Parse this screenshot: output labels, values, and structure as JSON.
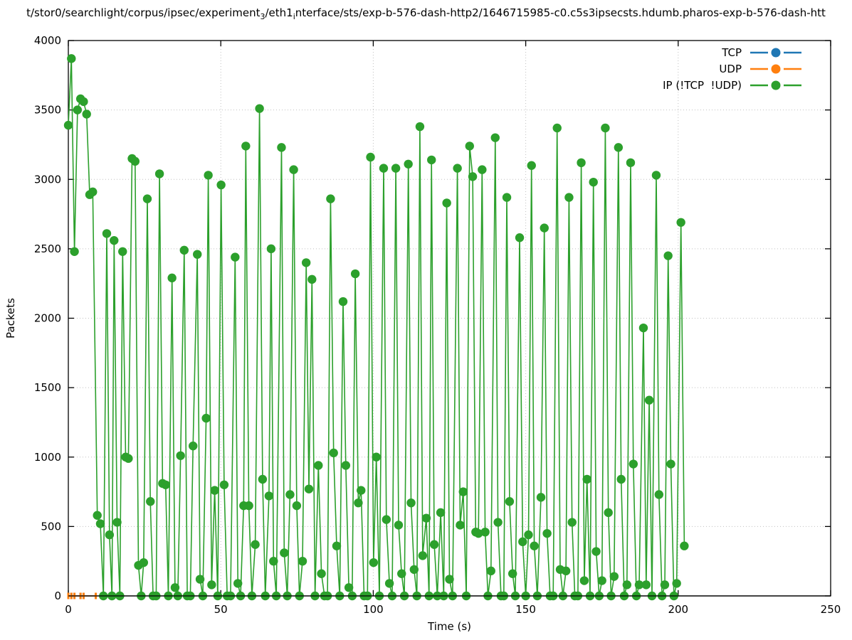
{
  "title": {
    "segments": [
      {
        "text": "t/stor0/searchlight/corpus/ipsec/experiment"
      },
      {
        "text": "3",
        "sub": true
      },
      {
        "text": "/eth1"
      },
      {
        "text": "i",
        "sub": true
      },
      {
        "text": "nterface/sts/exp-b-576-dash-http2/1646715985-c0.c5s3ipsecsts.hdumb.pharos-exp-b-576-dash-htt"
      }
    ]
  },
  "chart_data": {
    "type": "line",
    "style": "linespoints",
    "xlabel": "Time (s)",
    "ylabel": "Packets",
    "xlim": [
      0,
      250
    ],
    "ylim": [
      0,
      4000
    ],
    "xticks": [
      0,
      50,
      100,
      150,
      200,
      250
    ],
    "yticks": [
      0,
      500,
      1000,
      1500,
      2000,
      2500,
      3000,
      3500,
      4000
    ],
    "grid": true,
    "legend_position": "top-right",
    "series": [
      {
        "name": "TCP",
        "color": "#1f77b4",
        "marker": "dash",
        "points": [
          [
            0,
            0
          ],
          [
            1,
            0
          ],
          [
            2,
            0
          ],
          [
            4,
            0
          ],
          [
            5,
            0
          ],
          [
            9,
            0
          ]
        ]
      },
      {
        "name": "UDP",
        "color": "#ff7f0e",
        "marker": "dash",
        "points": [
          [
            0,
            0
          ],
          [
            1,
            0
          ],
          [
            2,
            0
          ],
          [
            4,
            0
          ],
          [
            5,
            0
          ],
          [
            9,
            0
          ]
        ]
      },
      {
        "name": "IP (!TCP  !UDP)",
        "color": "#2ca02c",
        "marker": "circle",
        "points": [
          [
            0,
            3390
          ],
          [
            1,
            3870
          ],
          [
            2,
            2480
          ],
          [
            3,
            3500
          ],
          [
            4,
            3580
          ],
          [
            5,
            3560
          ],
          [
            6,
            3470
          ],
          [
            7,
            2890
          ],
          [
            8,
            2910
          ],
          [
            9.5,
            580
          ],
          [
            10.5,
            520
          ],
          [
            11.5,
            0
          ],
          [
            12.6,
            2610
          ],
          [
            13.5,
            440
          ],
          [
            14.3,
            0
          ],
          [
            15,
            2560
          ],
          [
            16,
            530
          ],
          [
            16.9,
            0
          ],
          [
            17.8,
            2480
          ],
          [
            18.8,
            1000
          ],
          [
            19.7,
            990
          ],
          [
            20.9,
            3150
          ],
          [
            21.9,
            3130
          ],
          [
            23,
            220
          ],
          [
            23.9,
            0
          ],
          [
            24.7,
            240
          ],
          [
            25.9,
            2860
          ],
          [
            26.9,
            680
          ],
          [
            27.8,
            0
          ],
          [
            28.8,
            0
          ],
          [
            29.9,
            3040
          ],
          [
            30.9,
            810
          ],
          [
            31.9,
            800
          ],
          [
            32.8,
            0
          ],
          [
            34,
            2290
          ],
          [
            35,
            60
          ],
          [
            35.9,
            0
          ],
          [
            36.8,
            1010
          ],
          [
            38,
            2490
          ],
          [
            39,
            0
          ],
          [
            40,
            0
          ],
          [
            40.9,
            1080
          ],
          [
            42.3,
            2460
          ],
          [
            43.2,
            120
          ],
          [
            44.1,
            0
          ],
          [
            45.2,
            1280
          ],
          [
            45.9,
            3030
          ],
          [
            47,
            80
          ],
          [
            48,
            760
          ],
          [
            49,
            0
          ],
          [
            50.1,
            2960
          ],
          [
            51.1,
            800
          ],
          [
            52.1,
            0
          ],
          [
            53.2,
            0
          ],
          [
            54.7,
            2440
          ],
          [
            55.6,
            90
          ],
          [
            56.5,
            0
          ],
          [
            57.5,
            650
          ],
          [
            58.2,
            3240
          ],
          [
            59.2,
            650
          ],
          [
            60.2,
            0
          ],
          [
            61.3,
            370
          ],
          [
            62.7,
            3510
          ],
          [
            63.7,
            840
          ],
          [
            64.6,
            0
          ],
          [
            65.8,
            720
          ],
          [
            66.5,
            2500
          ],
          [
            67.3,
            250
          ],
          [
            68.2,
            0
          ],
          [
            69.9,
            3230
          ],
          [
            70.8,
            310
          ],
          [
            71.8,
            0
          ],
          [
            72.7,
            730
          ],
          [
            73.9,
            3070
          ],
          [
            74.9,
            650
          ],
          [
            75.8,
            0
          ],
          [
            76.8,
            250
          ],
          [
            78,
            2400
          ],
          [
            78.9,
            770
          ],
          [
            79.9,
            2280
          ],
          [
            80.9,
            0
          ],
          [
            82,
            940
          ],
          [
            83,
            160
          ],
          [
            84,
            0
          ],
          [
            85,
            0
          ],
          [
            86,
            2860
          ],
          [
            87,
            1030
          ],
          [
            88,
            360
          ],
          [
            89,
            0
          ],
          [
            90.1,
            2120
          ],
          [
            91,
            940
          ],
          [
            92,
            60
          ],
          [
            93.1,
            0
          ],
          [
            94.1,
            2320
          ],
          [
            95.1,
            670
          ],
          [
            96,
            760
          ],
          [
            97,
            0
          ],
          [
            98.1,
            0
          ],
          [
            99.1,
            3160
          ],
          [
            100.1,
            240
          ],
          [
            101,
            1000
          ],
          [
            102,
            0
          ],
          [
            103.4,
            3080
          ],
          [
            104.3,
            550
          ],
          [
            105.3,
            90
          ],
          [
            106.2,
            0
          ],
          [
            107.4,
            3080
          ],
          [
            108.3,
            510
          ],
          [
            109.3,
            160
          ],
          [
            110.2,
            0
          ],
          [
            111.5,
            3110
          ],
          [
            112.4,
            670
          ],
          [
            113.4,
            190
          ],
          [
            114.3,
            0
          ],
          [
            115.3,
            3380
          ],
          [
            116.2,
            290
          ],
          [
            117.4,
            560
          ],
          [
            118.3,
            0
          ],
          [
            119.1,
            3140
          ],
          [
            120,
            370
          ],
          [
            121,
            0
          ],
          [
            122.1,
            600
          ],
          [
            123.1,
            0
          ],
          [
            124.1,
            2830
          ],
          [
            125,
            120
          ],
          [
            126,
            0
          ],
          [
            127.6,
            3080
          ],
          [
            128.5,
            510
          ],
          [
            129.5,
            750
          ],
          [
            130.5,
            0
          ],
          [
            131.6,
            3240
          ],
          [
            132.6,
            3020
          ],
          [
            133.6,
            460
          ],
          [
            134.5,
            450
          ],
          [
            135.7,
            3070
          ],
          [
            136.7,
            460
          ],
          [
            137.6,
            0
          ],
          [
            138.6,
            180
          ],
          [
            140,
            3300
          ],
          [
            140.9,
            530
          ],
          [
            141.9,
            0
          ],
          [
            142.8,
            0
          ],
          [
            143.8,
            2870
          ],
          [
            144.7,
            680
          ],
          [
            145.7,
            160
          ],
          [
            146.6,
            0
          ],
          [
            148,
            2580
          ],
          [
            149,
            390
          ],
          [
            150,
            0
          ],
          [
            150.9,
            440
          ],
          [
            151.9,
            3100
          ],
          [
            152.8,
            360
          ],
          [
            153.8,
            0
          ],
          [
            155,
            710
          ],
          [
            156.1,
            2650
          ],
          [
            157,
            450
          ],
          [
            158,
            0
          ],
          [
            159,
            0
          ],
          [
            160.3,
            3370
          ],
          [
            161.3,
            190
          ],
          [
            162.2,
            0
          ],
          [
            163.2,
            180
          ],
          [
            164.2,
            2870
          ],
          [
            165.2,
            530
          ],
          [
            166.1,
            0
          ],
          [
            167.1,
            0
          ],
          [
            168.2,
            3120
          ],
          [
            169.2,
            110
          ],
          [
            170.1,
            840
          ],
          [
            171.1,
            0
          ],
          [
            172.2,
            2980
          ],
          [
            173.1,
            320
          ],
          [
            174.1,
            0
          ],
          [
            175,
            110
          ],
          [
            176.1,
            3370
          ],
          [
            177.1,
            600
          ],
          [
            178,
            0
          ],
          [
            179,
            140
          ],
          [
            180.4,
            3230
          ],
          [
            181.3,
            840
          ],
          [
            182.3,
            0
          ],
          [
            183.2,
            80
          ],
          [
            184.4,
            3120
          ],
          [
            185.3,
            950
          ],
          [
            186.3,
            0
          ],
          [
            187.2,
            80
          ],
          [
            188.6,
            1930
          ],
          [
            189.5,
            80
          ],
          [
            190.5,
            1410
          ],
          [
            191.4,
            0
          ],
          [
            192.8,
            3030
          ],
          [
            193.7,
            730
          ],
          [
            194.7,
            0
          ],
          [
            195.6,
            80
          ],
          [
            196.7,
            2450
          ],
          [
            197.6,
            950
          ],
          [
            198.6,
            0
          ],
          [
            199.5,
            90
          ],
          [
            200.9,
            2690
          ],
          [
            202,
            360
          ]
        ]
      }
    ]
  },
  "colors": {
    "background": "#ffffff",
    "axis": "#000000",
    "grid": "#c0c0c0",
    "tcp": "#1f77b4",
    "udp": "#ff7f0e",
    "ip": "#2ca02c"
  }
}
